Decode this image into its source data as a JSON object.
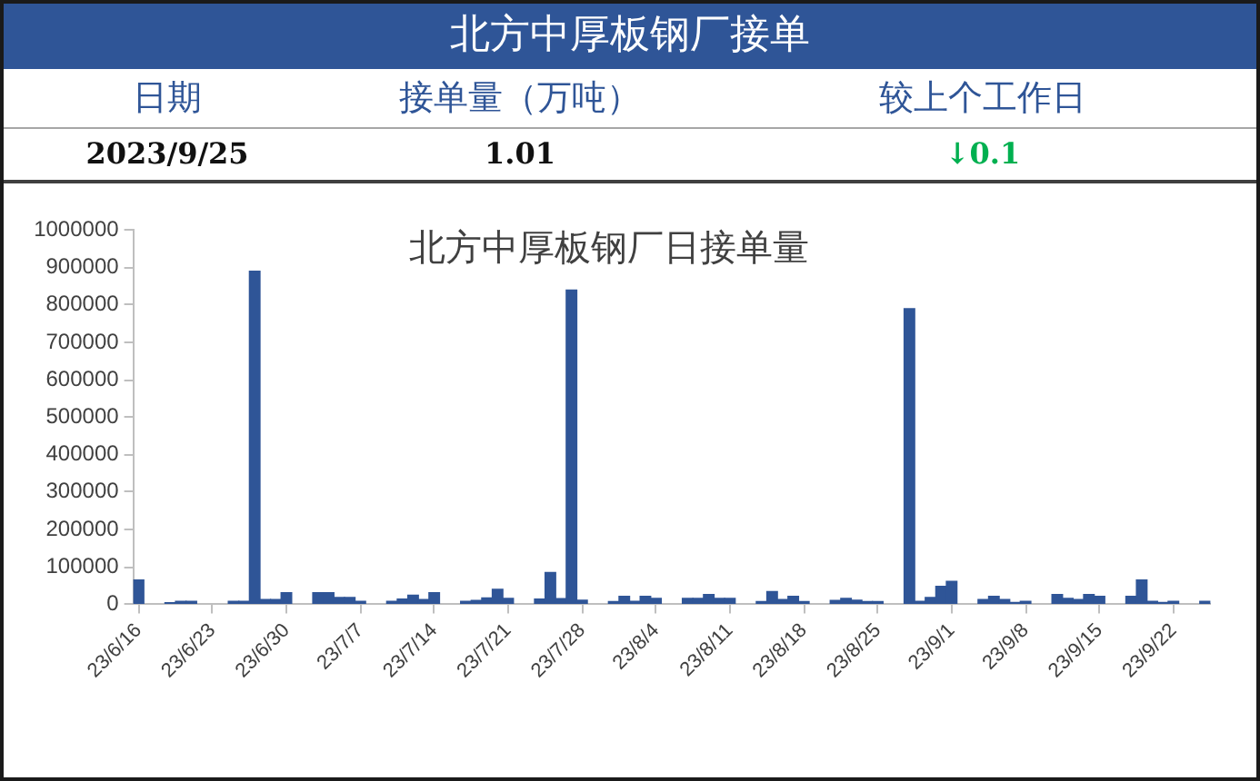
{
  "chart_data": [
    {
      "type": "other",
      "title": "北方中厚板钢厂接单",
      "annotations": [
        "日期",
        "接单量（万吨）",
        "较上个工作日",
        "2023/9/25",
        "1.01",
        "↓0.1"
      ]
    },
    {
      "type": "bar",
      "title": "北方中厚板钢厂日接单量",
      "color": "#2f5597",
      "x": [
        "2023-06-16",
        "2023-06-19",
        "2023-06-20",
        "2023-06-21",
        "2023-06-25",
        "2023-06-26",
        "2023-06-27",
        "2023-06-28",
        "2023-06-29",
        "2023-06-30",
        "2023-07-03",
        "2023-07-04",
        "2023-07-05",
        "2023-07-06",
        "2023-07-07",
        "2023-07-10",
        "2023-07-11",
        "2023-07-12",
        "2023-07-13",
        "2023-07-14",
        "2023-07-17",
        "2023-07-18",
        "2023-07-19",
        "2023-07-20",
        "2023-07-21",
        "2023-07-24",
        "2023-07-25",
        "2023-07-26",
        "2023-07-27",
        "2023-07-28",
        "2023-07-31",
        "2023-08-01",
        "2023-08-02",
        "2023-08-03",
        "2023-08-04",
        "2023-08-07",
        "2023-08-08",
        "2023-08-09",
        "2023-08-10",
        "2023-08-11",
        "2023-08-14",
        "2023-08-15",
        "2023-08-16",
        "2023-08-17",
        "2023-08-18",
        "2023-08-21",
        "2023-08-22",
        "2023-08-23",
        "2023-08-24",
        "2023-08-25",
        "2023-08-28",
        "2023-08-29",
        "2023-08-30",
        "2023-08-31",
        "2023-09-01",
        "2023-09-04",
        "2023-09-05",
        "2023-09-06",
        "2023-09-07",
        "2023-09-08",
        "2023-09-11",
        "2023-09-12",
        "2023-09-13",
        "2023-09-14",
        "2023-09-15",
        "2023-09-18",
        "2023-09-19",
        "2023-09-20",
        "2023-09-21",
        "2023-09-22",
        "2023-09-25"
      ],
      "values": [
        65000,
        4000,
        8000,
        8000,
        8000,
        8000,
        890000,
        13000,
        13000,
        31000,
        31000,
        31000,
        18000,
        18000,
        8000,
        8000,
        14000,
        24000,
        13000,
        31000,
        8000,
        10000,
        17000,
        40000,
        16000,
        14000,
        85000,
        15000,
        840000,
        11000,
        7000,
        21000,
        8000,
        21000,
        16000,
        16000,
        16000,
        26000,
        16000,
        16000,
        7000,
        34000,
        13000,
        21000,
        7000,
        10000,
        16000,
        11000,
        7000,
        7000,
        790000,
        8000,
        18000,
        48000,
        61000,
        13000,
        21000,
        13000,
        5000,
        8000,
        26000,
        16000,
        13000,
        26000,
        21000,
        21000,
        65000,
        8000,
        5000,
        8000,
        8000
      ],
      "xlim": [
        "2023-06-15T12:00",
        "2023-09-25T12:00"
      ],
      "xticks": [
        {
          "value": "2023-06-16",
          "label": "23/6/16"
        },
        {
          "value": "2023-06-23",
          "label": "23/6/23"
        },
        {
          "value": "2023-06-30",
          "label": "23/6/30"
        },
        {
          "value": "2023-07-07",
          "label": "23/7/7"
        },
        {
          "value": "2023-07-14",
          "label": "23/7/14"
        },
        {
          "value": "2023-07-21",
          "label": "23/7/21"
        },
        {
          "value": "2023-07-28",
          "label": "23/7/28"
        },
        {
          "value": "2023-08-04",
          "label": "23/8/4"
        },
        {
          "value": "2023-08-11",
          "label": "23/8/11"
        },
        {
          "value": "2023-08-18",
          "label": "23/8/18"
        },
        {
          "value": "2023-08-25",
          "label": "23/8/25"
        },
        {
          "value": "2023-09-01",
          "label": "23/9/1"
        },
        {
          "value": "2023-09-08",
          "label": "23/9/8"
        },
        {
          "value": "2023-09-15",
          "label": "23/9/15"
        },
        {
          "value": "2023-09-22",
          "label": "23/9/22"
        }
      ],
      "ylim": [
        0,
        1000000
      ],
      "yticks": [
        0,
        100000,
        200000,
        300000,
        400000,
        500000,
        600000,
        700000,
        800000,
        900000,
        1000000
      ]
    }
  ]
}
